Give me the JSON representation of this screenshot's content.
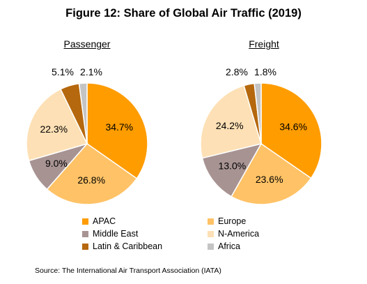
{
  "title": "Figure 12: Share of Global Air Traffic (2019)",
  "source": "Source: The International Air Transport Association (IATA)",
  "chart_data": [
    {
      "type": "pie",
      "title": "Passenger",
      "labels": [
        "APAC",
        "Europe",
        "Middle East",
        "N-America",
        "Latin & Caribbean",
        "Africa"
      ],
      "values": [
        34.7,
        26.8,
        9.0,
        22.3,
        5.1,
        2.1
      ],
      "value_labels": [
        "34.7%",
        "26.8%",
        "9.0%",
        "22.3%",
        "5.1%",
        "2.1%"
      ]
    },
    {
      "type": "pie",
      "title": "Freight",
      "labels": [
        "APAC",
        "Europe",
        "Middle East",
        "N-America",
        "Latin & Caribbean",
        "Africa"
      ],
      "values": [
        34.6,
        23.6,
        13.0,
        24.2,
        2.8,
        1.8
      ],
      "value_labels": [
        "34.6%",
        "23.6%",
        "13.0%",
        "24.2%",
        "2.8%",
        "1.8%"
      ]
    }
  ],
  "legend": [
    {
      "label": "APAC",
      "color": "#ff9c00"
    },
    {
      "label": "Europe",
      "color": "#ffc266"
    },
    {
      "label": "Middle East",
      "color": "#a89393"
    },
    {
      "label": "N-America",
      "color": "#fde0b5"
    },
    {
      "label": "Latin & Caribbean",
      "color": "#b5680d"
    },
    {
      "label": "Africa",
      "color": "#c4c4c4"
    }
  ]
}
